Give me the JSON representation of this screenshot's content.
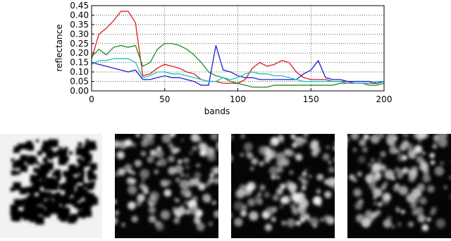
{
  "chart_data": {
    "type": "line",
    "xlabel": "bands",
    "ylabel": "reflectance",
    "x": [
      0,
      5,
      10,
      15,
      20,
      25,
      30,
      35,
      40,
      45,
      50,
      55,
      60,
      65,
      70,
      75,
      80,
      85,
      90,
      95,
      100,
      105,
      110,
      115,
      120,
      125,
      130,
      135,
      140,
      145,
      150,
      155,
      160,
      165,
      170,
      175,
      180,
      185,
      190,
      195,
      200
    ],
    "series": [
      {
        "color": "#e31a1c",
        "values": [
          0.17,
          0.3,
          0.33,
          0.37,
          0.42,
          0.42,
          0.36,
          0.08,
          0.09,
          0.12,
          0.14,
          0.13,
          0.12,
          0.1,
          0.09,
          0.06,
          0.05,
          0.05,
          0.04,
          0.04,
          0.04,
          0.06,
          0.12,
          0.15,
          0.13,
          0.14,
          0.16,
          0.15,
          0.1,
          0.07,
          0.06,
          0.06,
          0.06,
          0.05,
          0.05,
          0.05,
          0.04,
          0.04,
          0.04,
          0.04,
          0.05
        ]
      },
      {
        "color": "#238b23",
        "values": [
          0.18,
          0.22,
          0.19,
          0.23,
          0.24,
          0.23,
          0.24,
          0.13,
          0.15,
          0.22,
          0.25,
          0.25,
          0.24,
          0.22,
          0.19,
          0.15,
          0.1,
          0.08,
          0.07,
          0.05,
          0.04,
          0.03,
          0.02,
          0.02,
          0.02,
          0.03,
          0.03,
          0.03,
          0.03,
          0.03,
          0.03,
          0.03,
          0.03,
          0.03,
          0.04,
          0.04,
          0.04,
          0.04,
          0.03,
          0.03,
          0.04
        ]
      },
      {
        "color": "#1f1fd0",
        "values": [
          0.15,
          0.14,
          0.13,
          0.12,
          0.11,
          0.1,
          0.11,
          0.06,
          0.06,
          0.07,
          0.08,
          0.07,
          0.07,
          0.06,
          0.05,
          0.03,
          0.03,
          0.24,
          0.11,
          0.1,
          0.08,
          0.07,
          0.07,
          0.06,
          0.06,
          0.06,
          0.06,
          0.06,
          0.06,
          0.09,
          0.11,
          0.16,
          0.07,
          0.06,
          0.06,
          0.05,
          0.05,
          0.05,
          0.05,
          0.04,
          0.05
        ]
      },
      {
        "color": "#17c4c4",
        "values": [
          0.14,
          0.16,
          0.16,
          0.17,
          0.17,
          0.17,
          0.15,
          0.07,
          0.08,
          0.1,
          0.1,
          0.09,
          0.09,
          0.08,
          0.07,
          0.06,
          0.05,
          0.05,
          0.07,
          0.06,
          0.07,
          0.09,
          0.1,
          0.09,
          0.09,
          0.08,
          0.08,
          0.07,
          0.06,
          0.05,
          0.05,
          0.05,
          0.05,
          0.05,
          0.05,
          0.04,
          0.04,
          0.04,
          0.04,
          0.05,
          0.05
        ]
      }
    ],
    "xlim": [
      0,
      200
    ],
    "xticks": [
      0,
      50,
      100,
      150,
      200
    ],
    "ylim": [
      0,
      0.45
    ],
    "yticks": [
      {
        "value": 0,
        "label": "0.00"
      },
      {
        "value": 0.05,
        "label": "0.05"
      },
      {
        "value": 0.1,
        "label": "0.10"
      },
      {
        "value": 0.15,
        "label": "0.15"
      },
      {
        "value": 0.2,
        "label": "0.20"
      },
      {
        "value": 0.25,
        "label": "0.25"
      },
      {
        "value": 0.3,
        "label": "0.30"
      },
      {
        "value": 0.35,
        "label": "0.35"
      },
      {
        "value": 0.4,
        "label": "0.40"
      },
      {
        "value": 0.45,
        "label": "0.45"
      }
    ],
    "grid": true
  }
}
